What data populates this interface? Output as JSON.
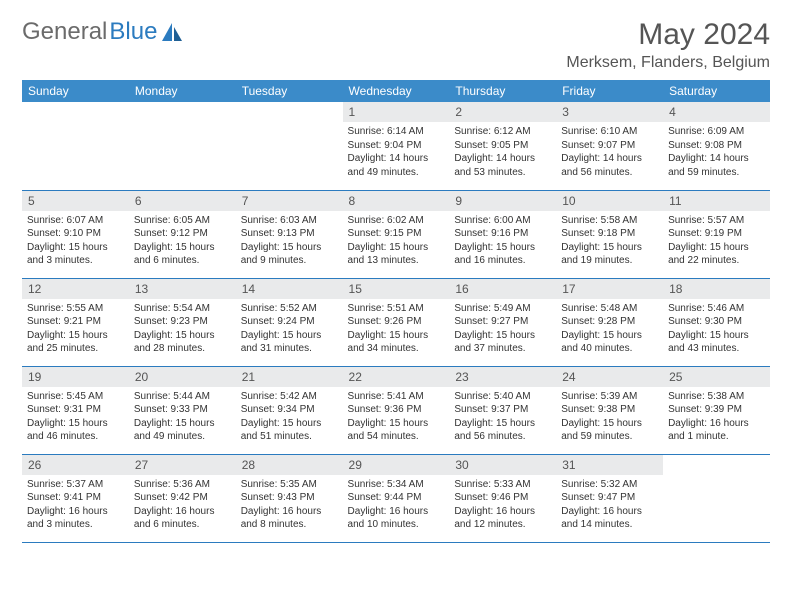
{
  "brand": {
    "part1": "General",
    "part2": "Blue"
  },
  "title": "May 2024",
  "location": "Merksem, Flanders, Belgium",
  "colors": {
    "header_bg": "#3b8bc9",
    "header_text": "#ffffff",
    "daynum_bg": "#e9eaeb",
    "border": "#2b7bbf",
    "brand_gray": "#6b6b6b",
    "brand_blue": "#2b7bbf"
  },
  "weekdays": [
    "Sunday",
    "Monday",
    "Tuesday",
    "Wednesday",
    "Thursday",
    "Friday",
    "Saturday"
  ],
  "weeks": [
    [
      null,
      null,
      null,
      {
        "n": "1",
        "sr": "6:14 AM",
        "ss": "9:04 PM",
        "dl": "14 hours and 49 minutes."
      },
      {
        "n": "2",
        "sr": "6:12 AM",
        "ss": "9:05 PM",
        "dl": "14 hours and 53 minutes."
      },
      {
        "n": "3",
        "sr": "6:10 AM",
        "ss": "9:07 PM",
        "dl": "14 hours and 56 minutes."
      },
      {
        "n": "4",
        "sr": "6:09 AM",
        "ss": "9:08 PM",
        "dl": "14 hours and 59 minutes."
      }
    ],
    [
      {
        "n": "5",
        "sr": "6:07 AM",
        "ss": "9:10 PM",
        "dl": "15 hours and 3 minutes."
      },
      {
        "n": "6",
        "sr": "6:05 AM",
        "ss": "9:12 PM",
        "dl": "15 hours and 6 minutes."
      },
      {
        "n": "7",
        "sr": "6:03 AM",
        "ss": "9:13 PM",
        "dl": "15 hours and 9 minutes."
      },
      {
        "n": "8",
        "sr": "6:02 AM",
        "ss": "9:15 PM",
        "dl": "15 hours and 13 minutes."
      },
      {
        "n": "9",
        "sr": "6:00 AM",
        "ss": "9:16 PM",
        "dl": "15 hours and 16 minutes."
      },
      {
        "n": "10",
        "sr": "5:58 AM",
        "ss": "9:18 PM",
        "dl": "15 hours and 19 minutes."
      },
      {
        "n": "11",
        "sr": "5:57 AM",
        "ss": "9:19 PM",
        "dl": "15 hours and 22 minutes."
      }
    ],
    [
      {
        "n": "12",
        "sr": "5:55 AM",
        "ss": "9:21 PM",
        "dl": "15 hours and 25 minutes."
      },
      {
        "n": "13",
        "sr": "5:54 AM",
        "ss": "9:23 PM",
        "dl": "15 hours and 28 minutes."
      },
      {
        "n": "14",
        "sr": "5:52 AM",
        "ss": "9:24 PM",
        "dl": "15 hours and 31 minutes."
      },
      {
        "n": "15",
        "sr": "5:51 AM",
        "ss": "9:26 PM",
        "dl": "15 hours and 34 minutes."
      },
      {
        "n": "16",
        "sr": "5:49 AM",
        "ss": "9:27 PM",
        "dl": "15 hours and 37 minutes."
      },
      {
        "n": "17",
        "sr": "5:48 AM",
        "ss": "9:28 PM",
        "dl": "15 hours and 40 minutes."
      },
      {
        "n": "18",
        "sr": "5:46 AM",
        "ss": "9:30 PM",
        "dl": "15 hours and 43 minutes."
      }
    ],
    [
      {
        "n": "19",
        "sr": "5:45 AM",
        "ss": "9:31 PM",
        "dl": "15 hours and 46 minutes."
      },
      {
        "n": "20",
        "sr": "5:44 AM",
        "ss": "9:33 PM",
        "dl": "15 hours and 49 minutes."
      },
      {
        "n": "21",
        "sr": "5:42 AM",
        "ss": "9:34 PM",
        "dl": "15 hours and 51 minutes."
      },
      {
        "n": "22",
        "sr": "5:41 AM",
        "ss": "9:36 PM",
        "dl": "15 hours and 54 minutes."
      },
      {
        "n": "23",
        "sr": "5:40 AM",
        "ss": "9:37 PM",
        "dl": "15 hours and 56 minutes."
      },
      {
        "n": "24",
        "sr": "5:39 AM",
        "ss": "9:38 PM",
        "dl": "15 hours and 59 minutes."
      },
      {
        "n": "25",
        "sr": "5:38 AM",
        "ss": "9:39 PM",
        "dl": "16 hours and 1 minute."
      }
    ],
    [
      {
        "n": "26",
        "sr": "5:37 AM",
        "ss": "9:41 PM",
        "dl": "16 hours and 3 minutes."
      },
      {
        "n": "27",
        "sr": "5:36 AM",
        "ss": "9:42 PM",
        "dl": "16 hours and 6 minutes."
      },
      {
        "n": "28",
        "sr": "5:35 AM",
        "ss": "9:43 PM",
        "dl": "16 hours and 8 minutes."
      },
      {
        "n": "29",
        "sr": "5:34 AM",
        "ss": "9:44 PM",
        "dl": "16 hours and 10 minutes."
      },
      {
        "n": "30",
        "sr": "5:33 AM",
        "ss": "9:46 PM",
        "dl": "16 hours and 12 minutes."
      },
      {
        "n": "31",
        "sr": "5:32 AM",
        "ss": "9:47 PM",
        "dl": "16 hours and 14 minutes."
      },
      null
    ]
  ],
  "labels": {
    "sunrise": "Sunrise:",
    "sunset": "Sunset:",
    "daylight": "Daylight:"
  }
}
